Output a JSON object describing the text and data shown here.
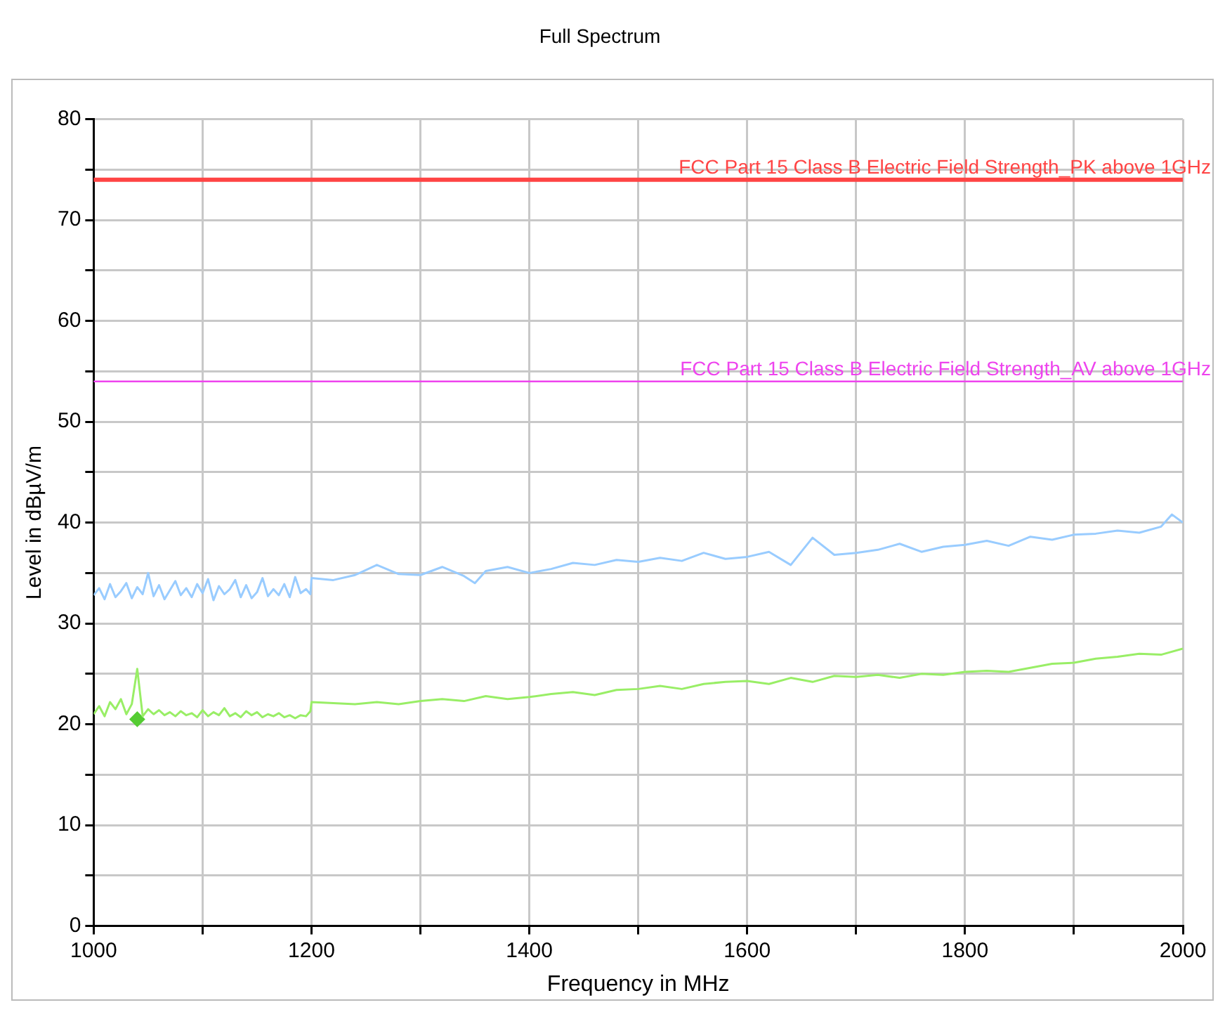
{
  "chart_data": {
    "type": "line",
    "title": "Full Spectrum",
    "xlabel": "Frequency in MHz",
    "ylabel": "Level in dBµV/m",
    "xlim": [
      1000,
      2000
    ],
    "xticks": [
      1000,
      {
        "value": 1100,
        "label": null
      },
      1200,
      {
        "value": 1300,
        "label": null
      },
      1400,
      {
        "value": 1500,
        "label": null
      },
      1600,
      {
        "value": 1700,
        "label": null
      },
      1800,
      {
        "value": 1900,
        "label": null
      },
      2000
    ],
    "ylim": [
      0,
      80
    ],
    "yticks": [
      0,
      {
        "value": 5,
        "label": null
      },
      10,
      {
        "value": 15,
        "label": null
      },
      20,
      {
        "value": 25,
        "label": null
      },
      30,
      {
        "value": 35,
        "label": null
      },
      40,
      {
        "value": 45,
        "label": null
      },
      50,
      {
        "value": 55,
        "label": null
      },
      60,
      {
        "value": 65,
        "label": null
      },
      70,
      {
        "value": 75,
        "label": null
      },
      80
    ],
    "grid": true,
    "legend": false,
    "line_style": "solid",
    "marker": "none",
    "series": [
      {
        "type": "line",
        "color": "#99ccff",
        "x": [
          1000,
          1005,
          1010,
          1015,
          1020,
          1025,
          1030,
          1035,
          1040,
          1045,
          1050,
          1055,
          1060,
          1065,
          1070,
          1075,
          1080,
          1085,
          1090,
          1095,
          1100,
          1105,
          1110,
          1115,
          1120,
          1125,
          1130,
          1135,
          1140,
          1145,
          1150,
          1155,
          1160,
          1165,
          1170,
          1175,
          1180,
          1185,
          1190,
          1195,
          1199,
          1200,
          1220,
          1240,
          1260,
          1280,
          1300,
          1320,
          1340,
          1350,
          1360,
          1380,
          1400,
          1420,
          1440,
          1460,
          1480,
          1500,
          1520,
          1540,
          1560,
          1580,
          1600,
          1620,
          1640,
          1660,
          1680,
          1700,
          1720,
          1740,
          1760,
          1780,
          1800,
          1820,
          1840,
          1860,
          1880,
          1900,
          1920,
          1940,
          1960,
          1980,
          1990,
          2000
        ],
        "values": [
          32.8,
          33.5,
          32.4,
          33.9,
          32.6,
          33.2,
          34.0,
          32.5,
          33.6,
          32.9,
          35.0,
          32.7,
          33.8,
          32.4,
          33.3,
          34.2,
          32.8,
          33.5,
          32.6,
          33.9,
          33.0,
          34.4,
          32.3,
          33.7,
          32.9,
          33.4,
          34.3,
          32.6,
          33.8,
          32.5,
          33.1,
          34.5,
          32.7,
          33.4,
          32.8,
          33.9,
          32.6,
          34.6,
          33.0,
          33.4,
          32.9,
          34.5,
          34.3,
          34.8,
          35.8,
          34.9,
          34.8,
          35.6,
          34.7,
          34.0,
          35.2,
          35.6,
          35.0,
          35.4,
          36.0,
          35.8,
          36.3,
          36.1,
          36.5,
          36.2,
          37.0,
          36.4,
          36.6,
          37.1,
          35.8,
          38.5,
          36.8,
          37.0,
          37.3,
          37.9,
          37.1,
          37.6,
          37.8,
          38.2,
          37.7,
          38.6,
          38.3,
          38.8,
          38.9,
          39.2,
          39.0,
          39.6,
          40.8,
          40.0
        ]
      },
      {
        "type": "line",
        "color": "#99ee66",
        "x": [
          1000,
          1005,
          1010,
          1015,
          1020,
          1025,
          1030,
          1035,
          1040,
          1045,
          1050,
          1055,
          1060,
          1065,
          1070,
          1075,
          1080,
          1085,
          1090,
          1095,
          1100,
          1105,
          1110,
          1115,
          1120,
          1125,
          1130,
          1135,
          1140,
          1145,
          1150,
          1155,
          1160,
          1165,
          1170,
          1175,
          1180,
          1185,
          1190,
          1195,
          1199,
          1200,
          1220,
          1240,
          1260,
          1280,
          1300,
          1320,
          1340,
          1360,
          1380,
          1400,
          1420,
          1440,
          1460,
          1480,
          1500,
          1520,
          1540,
          1560,
          1580,
          1600,
          1620,
          1640,
          1660,
          1680,
          1700,
          1720,
          1740,
          1760,
          1780,
          1800,
          1820,
          1840,
          1860,
          1880,
          1900,
          1920,
          1940,
          1960,
          1980,
          2000
        ],
        "values": [
          21.0,
          21.8,
          20.8,
          22.2,
          21.5,
          22.5,
          21.0,
          22.0,
          25.5,
          20.8,
          21.5,
          21.0,
          21.4,
          20.9,
          21.2,
          20.8,
          21.3,
          20.9,
          21.1,
          20.7,
          21.4,
          20.8,
          21.2,
          20.9,
          21.6,
          20.8,
          21.1,
          20.7,
          21.3,
          20.9,
          21.2,
          20.7,
          21.0,
          20.8,
          21.1,
          20.7,
          20.9,
          20.6,
          20.9,
          20.8,
          21.3,
          22.2,
          22.1,
          22.0,
          22.2,
          22.0,
          22.3,
          22.5,
          22.3,
          22.8,
          22.5,
          22.7,
          23.0,
          23.2,
          22.9,
          23.4,
          23.5,
          23.8,
          23.5,
          24.0,
          24.2,
          24.3,
          24.0,
          24.6,
          24.2,
          24.8,
          24.7,
          24.9,
          24.6,
          25.0,
          24.9,
          25.2,
          25.3,
          25.2,
          25.6,
          26.0,
          26.1,
          26.5,
          26.7,
          27.0,
          26.9,
          27.5
        ]
      },
      {
        "type": "scatter",
        "color": "#55cc33",
        "marker": "diamond",
        "x": [
          1040
        ],
        "values": [
          20.5
        ]
      }
    ],
    "ref_lines": [
      {
        "axis": "y",
        "value": 74,
        "label": "FCC Part 15 Class B Electric Field Strength_PK above 1GHz",
        "color": "#ff4444",
        "line_style": "solid"
      },
      {
        "axis": "y",
        "value": 54,
        "label": "FCC Part 15 Class B Electric Field Strength_AV above 1GHz",
        "color": "#ee44ee",
        "line_style": "solid"
      }
    ]
  }
}
